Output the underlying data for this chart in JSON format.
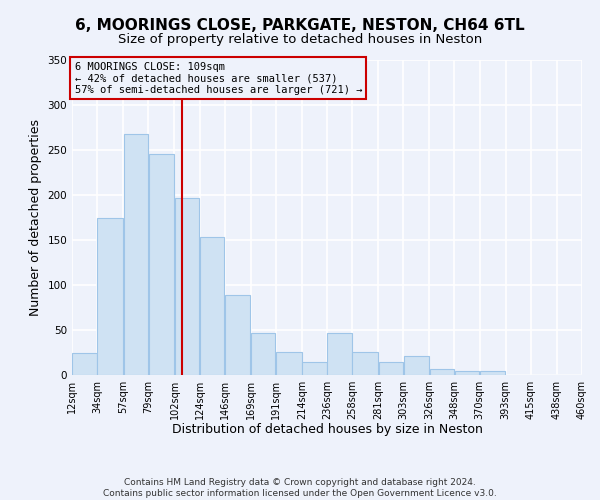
{
  "title": "6, MOORINGS CLOSE, PARKGATE, NESTON, CH64 6TL",
  "subtitle": "Size of property relative to detached houses in Neston",
  "xlabel": "Distribution of detached houses by size in Neston",
  "ylabel": "Number of detached properties",
  "bin_edges": [
    12,
    34,
    57,
    79,
    102,
    124,
    146,
    169,
    191,
    214,
    236,
    258,
    281,
    303,
    326,
    348,
    370,
    393,
    415,
    438,
    460
  ],
  "bar_heights": [
    24,
    175,
    268,
    246,
    197,
    153,
    89,
    47,
    26,
    14,
    47,
    26,
    14,
    21,
    7,
    5,
    4,
    0,
    0,
    0
  ],
  "bar_color": "#cfe2f3",
  "bar_edge_color": "#9fc5e8",
  "property_value": 109,
  "vline_color": "#cc0000",
  "annotation_box_color": "#cc0000",
  "annotation_lines": [
    "6 MOORINGS CLOSE: 109sqm",
    "← 42% of detached houses are smaller (537)",
    "57% of semi-detached houses are larger (721) →"
  ],
  "tick_labels": [
    "12sqm",
    "34sqm",
    "57sqm",
    "79sqm",
    "102sqm",
    "124sqm",
    "146sqm",
    "169sqm",
    "191sqm",
    "214sqm",
    "236sqm",
    "258sqm",
    "281sqm",
    "303sqm",
    "326sqm",
    "348sqm",
    "370sqm",
    "393sqm",
    "415sqm",
    "438sqm",
    "460sqm"
  ],
  "ylim": [
    0,
    350
  ],
  "yticks": [
    0,
    50,
    100,
    150,
    200,
    250,
    300,
    350
  ],
  "footer_lines": [
    "Contains HM Land Registry data © Crown copyright and database right 2024.",
    "Contains public sector information licensed under the Open Government Licence v3.0."
  ],
  "background_color": "#eef2fb",
  "grid_color": "#ffffff",
  "title_fontsize": 11,
  "subtitle_fontsize": 9.5,
  "axis_label_fontsize": 9,
  "tick_fontsize": 7,
  "footer_fontsize": 6.5,
  "annotation_fontsize": 7.5
}
